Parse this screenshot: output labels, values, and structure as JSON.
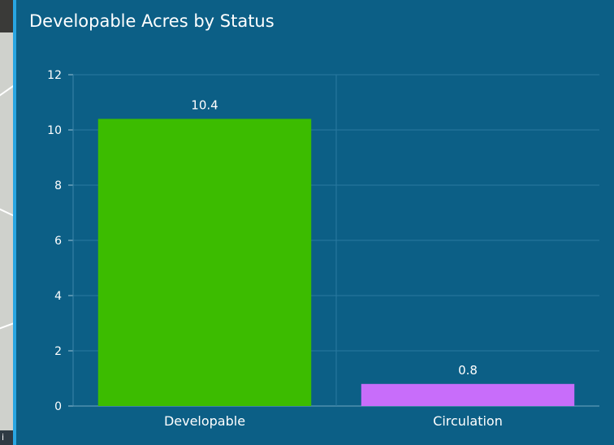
{
  "map": {
    "attribution": "i"
  },
  "chart_data": {
    "type": "bar",
    "title": "Developable Acres by Status",
    "categories": [
      "Developable",
      "Circulation"
    ],
    "values": [
      10.4,
      0.8
    ],
    "data_labels": [
      "10.4",
      "0.8"
    ],
    "colors": [
      "#3cbc00",
      "#c86dfa"
    ],
    "ylim": [
      0,
      12
    ],
    "yticks": [
      0,
      2,
      4,
      6,
      8,
      10,
      12
    ],
    "xlabel": "",
    "ylabel": "",
    "grid": true,
    "legend": "none"
  }
}
